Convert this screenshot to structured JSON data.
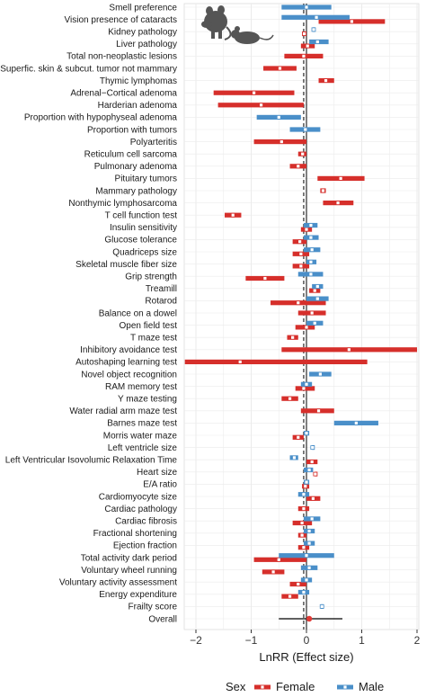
{
  "chart_data": {
    "type": "forest",
    "xlabel": "LnRR (Effect size)",
    "xlim": [
      -2.2,
      2.0
    ],
    "xticks": [
      -2,
      -1,
      0,
      1,
      2
    ],
    "grid": true,
    "reference_lines": [
      {
        "x": 0,
        "style": "solid"
      },
      {
        "x": -0.05,
        "style": "dashed"
      }
    ],
    "legend": {
      "title": "Sex",
      "position": "bottom",
      "entries": [
        {
          "name": "Female",
          "color": "#d62f2b"
        },
        {
          "name": "Male",
          "color": "#4a8fc9"
        }
      ]
    },
    "colors": {
      "Female": "#d62f2b",
      "Male": "#4a8fc9",
      "overall_point": "#e03a36"
    },
    "icon": "mouse-and-rat-silhouette-icon",
    "rows": [
      {
        "label": "Smell preference",
        "male": [
          -0.45,
          0.0,
          0.45
        ]
      },
      {
        "label": "Vision presence of cataracts",
        "female": [
          0.22,
          0.82,
          1.42
        ],
        "male": [
          -0.45,
          0.18,
          0.78
        ]
      },
      {
        "label": "Kidney pathology",
        "female": [
          -0.08,
          -0.04,
          0.0
        ],
        "male": [
          0.11,
          0.13,
          0.15
        ]
      },
      {
        "label": "Liver pathology",
        "female": [
          -0.1,
          0.02,
          0.15
        ],
        "male": [
          0.05,
          0.2,
          0.4
        ]
      },
      {
        "label": "Total non-neoplastic lesions",
        "female": [
          -0.4,
          -0.05,
          0.3
        ]
      },
      {
        "label": "Superfic. skin & subcut. tumor not mammary",
        "female": [
          -0.78,
          -0.48,
          -0.18
        ]
      },
      {
        "label": "Thymic lymphomas",
        "female": [
          0.22,
          0.35,
          0.5
        ]
      },
      {
        "label": "Adrenal−Cortical adenoma",
        "female": [
          -1.68,
          -0.95,
          -0.22
        ]
      },
      {
        "label": "Harderian adenoma",
        "female": [
          -1.6,
          -0.82,
          -0.05
        ]
      },
      {
        "label": "Proportion with hypophyseal adenoma",
        "male": [
          -0.9,
          -0.5,
          -0.1
        ]
      },
      {
        "label": "Proportion with tumors",
        "male": [
          -0.3,
          -0.02,
          0.25
        ]
      },
      {
        "label": "Polyarteritis",
        "female": [
          -0.95,
          -0.45,
          0.0
        ]
      },
      {
        "label": "Reticulum cell sarcoma",
        "female": [
          -0.15,
          -0.07,
          0.0
        ]
      },
      {
        "label": "Pulmonary adenoma",
        "female": [
          -0.3,
          -0.15,
          0.0
        ]
      },
      {
        "label": "Pituitary tumors",
        "female": [
          0.2,
          0.62,
          1.05
        ]
      },
      {
        "label": "Mammary pathology",
        "female": [
          0.25,
          0.3,
          0.35
        ]
      },
      {
        "label": "Nonthymic lymphosarcoma",
        "female": [
          0.3,
          0.57,
          0.85
        ]
      },
      {
        "label": "T cell function test",
        "female": [
          -1.48,
          -1.33,
          -1.18
        ]
      },
      {
        "label": "Insulin sensitivity",
        "female": [
          -0.1,
          0.0,
          0.1
        ],
        "male": [
          -0.05,
          0.08,
          0.2
        ]
      },
      {
        "label": "Glucose tolerance",
        "female": [
          -0.25,
          -0.12,
          0.0
        ],
        "male": [
          -0.05,
          0.08,
          0.22
        ]
      },
      {
        "label": "Quadriceps size",
        "female": [
          -0.25,
          -0.1,
          0.05
        ],
        "male": [
          -0.05,
          0.1,
          0.25
        ]
      },
      {
        "label": "Skeletal muscle fiber size",
        "female": [
          -0.25,
          -0.1,
          0.05
        ],
        "male": [
          0.0,
          0.08,
          0.18
        ]
      },
      {
        "label": "Grip strength",
        "female": [
          -1.1,
          -0.75,
          -0.4
        ],
        "male": [
          -0.15,
          0.08,
          0.3
        ]
      },
      {
        "label": "Treamill",
        "female": [
          0.05,
          0.15,
          0.25
        ],
        "male": [
          0.1,
          0.2,
          0.3
        ]
      },
      {
        "label": "Rotarod",
        "female": [
          -0.65,
          -0.15,
          0.35
        ],
        "male": [
          0.0,
          0.2,
          0.4
        ]
      },
      {
        "label": "Balance on a dowel",
        "female": [
          -0.15,
          0.1,
          0.35
        ]
      },
      {
        "label": "Open field test",
        "female": [
          -0.2,
          0.0,
          0.15
        ],
        "male": [
          0.0,
          0.15,
          0.3
        ]
      },
      {
        "label": "T maze test",
        "female": [
          -0.35,
          -0.25,
          -0.15
        ]
      },
      {
        "label": "Inhibitory avoidance test",
        "female": [
          -0.45,
          0.77,
          2.0
        ]
      },
      {
        "label": "Autoshaping learning test",
        "female": [
          -2.2,
          -1.2,
          1.1
        ]
      },
      {
        "label": "Novel object recognition",
        "male": [
          0.05,
          0.25,
          0.45
        ]
      },
      {
        "label": "RAM memory test",
        "female": [
          -0.2,
          -0.05,
          0.15
        ],
        "male": [
          -0.1,
          0.0,
          0.1
        ]
      },
      {
        "label": "Y maze testing",
        "female": [
          -0.45,
          -0.3,
          -0.15
        ]
      },
      {
        "label": "Water radial arm maze test",
        "female": [
          -0.1,
          0.22,
          0.5
        ]
      },
      {
        "label": "Barnes maze test",
        "male": [
          0.5,
          0.9,
          1.3
        ]
      },
      {
        "label": "Morris water maze",
        "female": [
          -0.25,
          -0.15,
          -0.05
        ],
        "male": [
          -0.05,
          0.0,
          0.05
        ]
      },
      {
        "label": "Left ventricle size",
        "male": [
          0.1,
          0.11,
          0.12
        ]
      },
      {
        "label": "Left Ventricular Isovolumic Relaxation Time",
        "female": [
          0.0,
          0.1,
          0.2
        ],
        "male": [
          -0.3,
          -0.22,
          -0.15
        ]
      },
      {
        "label": "Heart size",
        "female": [
          0.15,
          0.16,
          0.18
        ],
        "male": [
          -0.05,
          0.05,
          0.12
        ]
      },
      {
        "label": "E/A ratio",
        "female": [
          -0.08,
          -0.02,
          0.05
        ],
        "male": [
          -0.05,
          0.0,
          0.05
        ]
      },
      {
        "label": "Cardiomyocyte size",
        "female": [
          0.0,
          0.12,
          0.25
        ],
        "male": [
          -0.15,
          -0.05,
          0.05
        ]
      },
      {
        "label": "Cardiac pathology",
        "female": [
          -0.15,
          -0.05,
          0.05
        ]
      },
      {
        "label": "Cardiac fibrosis",
        "female": [
          -0.25,
          -0.08,
          0.1
        ],
        "male": [
          -0.05,
          0.1,
          0.25
        ]
      },
      {
        "label": "Fractional shortening",
        "female": [
          -0.15,
          -0.08,
          0.0
        ],
        "male": [
          -0.05,
          0.05,
          0.15
        ]
      },
      {
        "label": "Ejection fraction",
        "female": [
          -0.15,
          -0.05,
          0.05
        ],
        "male": [
          -0.05,
          0.05,
          0.15
        ]
      },
      {
        "label": "Total activity dark period",
        "female": [
          -0.95,
          -0.5,
          0.0
        ],
        "male": [
          -0.5,
          0.0,
          0.5
        ]
      },
      {
        "label": "Voluntary wheel running",
        "female": [
          -0.8,
          -0.6,
          -0.4
        ],
        "male": [
          -0.1,
          0.05,
          0.2
        ]
      },
      {
        "label": "Voluntary activity assessment",
        "female": [
          -0.3,
          -0.15,
          0.0
        ],
        "male": [
          -0.1,
          0.0,
          0.1
        ]
      },
      {
        "label": "Energy expenditure",
        "female": [
          -0.45,
          -0.3,
          -0.15
        ],
        "male": [
          -0.15,
          -0.05,
          0.05
        ]
      },
      {
        "label": "Frailty score",
        "male": [
          0.26,
          0.28,
          0.3
        ]
      },
      {
        "label": "Overall",
        "overall": [
          -0.5,
          0.05,
          0.65
        ]
      }
    ]
  }
}
